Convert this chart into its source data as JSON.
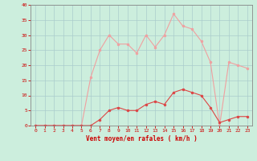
{
  "x": [
    0,
    1,
    2,
    3,
    4,
    5,
    6,
    7,
    8,
    9,
    10,
    11,
    12,
    13,
    14,
    15,
    16,
    17,
    18,
    19,
    20,
    21,
    22,
    23
  ],
  "wind_avg": [
    0,
    0,
    0,
    0,
    0,
    0,
    0,
    2,
    5,
    6,
    5,
    5,
    7,
    8,
    7,
    11,
    12,
    11,
    10,
    6,
    1,
    2,
    3,
    3
  ],
  "wind_gust": [
    0,
    0,
    0,
    0,
    0,
    0,
    16,
    25,
    30,
    27,
    27,
    24,
    30,
    26,
    30,
    37,
    33,
    32,
    28,
    21,
    0,
    21,
    20,
    19
  ],
  "avg_color": "#dd4444",
  "gust_color": "#f0a0a0",
  "bg_color": "#cceedd",
  "grid_color": "#aacccc",
  "xlabel": "Vent moyen/en rafales ( km/h )",
  "xlabel_color": "#cc0000",
  "tick_color": "#cc0000",
  "spine_color": "#888888",
  "ylim": [
    0,
    40
  ],
  "yticks": [
    0,
    5,
    10,
    15,
    20,
    25,
    30,
    35,
    40
  ],
  "xticks": [
    0,
    1,
    2,
    3,
    4,
    5,
    6,
    7,
    8,
    9,
    10,
    11,
    12,
    13,
    14,
    15,
    16,
    17,
    18,
    19,
    20,
    21,
    22,
    23
  ]
}
